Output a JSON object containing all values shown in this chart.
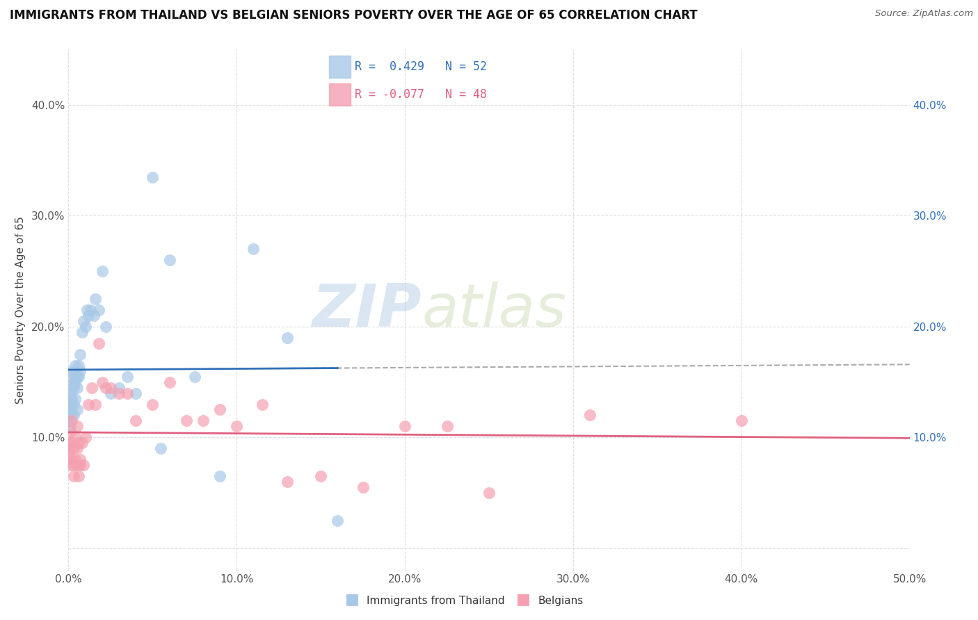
{
  "title": "IMMIGRANTS FROM THAILAND VS BELGIAN SENIORS POVERTY OVER THE AGE OF 65 CORRELATION CHART",
  "source": "Source: ZipAtlas.com",
  "ylabel": "Seniors Poverty Over the Age of 65",
  "xlim": [
    0.0,
    0.5
  ],
  "ylim": [
    -0.02,
    0.45
  ],
  "yticks": [
    0.0,
    0.1,
    0.2,
    0.3,
    0.4
  ],
  "xticks": [
    0.0,
    0.1,
    0.2,
    0.3,
    0.4,
    0.5
  ],
  "blue_R": 0.429,
  "blue_N": 52,
  "pink_R": -0.077,
  "pink_N": 48,
  "blue_color": "#a8c8e8",
  "pink_color": "#f4a0b0",
  "blue_line_color": "#3070b8",
  "pink_line_color": "#e06080",
  "dash_line_color": "#aaaaaa",
  "blue_scatter_x": [
    0.0,
    0.0,
    0.0,
    0.0,
    0.001,
    0.001,
    0.001,
    0.001,
    0.001,
    0.002,
    0.002,
    0.002,
    0.002,
    0.002,
    0.003,
    0.003,
    0.003,
    0.003,
    0.004,
    0.004,
    0.004,
    0.004,
    0.005,
    0.005,
    0.005,
    0.006,
    0.006,
    0.007,
    0.007,
    0.008,
    0.009,
    0.01,
    0.011,
    0.012,
    0.013,
    0.015,
    0.016,
    0.018,
    0.02,
    0.022,
    0.025,
    0.03,
    0.035,
    0.04,
    0.05,
    0.055,
    0.06,
    0.075,
    0.09,
    0.11,
    0.13,
    0.16
  ],
  "blue_scatter_y": [
    0.125,
    0.13,
    0.12,
    0.115,
    0.14,
    0.155,
    0.135,
    0.125,
    0.11,
    0.145,
    0.135,
    0.16,
    0.12,
    0.13,
    0.145,
    0.15,
    0.13,
    0.12,
    0.155,
    0.135,
    0.15,
    0.165,
    0.145,
    0.155,
    0.125,
    0.165,
    0.155,
    0.16,
    0.175,
    0.195,
    0.205,
    0.2,
    0.215,
    0.21,
    0.215,
    0.21,
    0.225,
    0.215,
    0.25,
    0.2,
    0.14,
    0.145,
    0.155,
    0.14,
    0.335,
    0.09,
    0.26,
    0.155,
    0.065,
    0.27,
    0.19,
    0.025
  ],
  "pink_scatter_x": [
    0.0,
    0.0,
    0.001,
    0.001,
    0.001,
    0.002,
    0.002,
    0.002,
    0.003,
    0.003,
    0.003,
    0.004,
    0.004,
    0.005,
    0.005,
    0.005,
    0.006,
    0.006,
    0.007,
    0.007,
    0.008,
    0.009,
    0.01,
    0.012,
    0.014,
    0.016,
    0.018,
    0.02,
    0.022,
    0.025,
    0.03,
    0.035,
    0.04,
    0.05,
    0.06,
    0.07,
    0.08,
    0.09,
    0.1,
    0.115,
    0.13,
    0.15,
    0.175,
    0.2,
    0.225,
    0.25,
    0.31,
    0.4
  ],
  "pink_scatter_y": [
    0.095,
    0.085,
    0.105,
    0.075,
    0.09,
    0.08,
    0.095,
    0.115,
    0.065,
    0.075,
    0.09,
    0.08,
    0.1,
    0.075,
    0.09,
    0.11,
    0.065,
    0.095,
    0.08,
    0.075,
    0.095,
    0.075,
    0.1,
    0.13,
    0.145,
    0.13,
    0.185,
    0.15,
    0.145,
    0.145,
    0.14,
    0.14,
    0.115,
    0.13,
    0.15,
    0.115,
    0.115,
    0.125,
    0.11,
    0.13,
    0.06,
    0.065,
    0.055,
    0.11,
    0.11,
    0.05,
    0.12,
    0.115
  ],
  "watermark_zip": "ZIP",
  "watermark_atlas": "atlas",
  "background_color": "#ffffff",
  "grid_color": "#dddddd",
  "title_fontsize": 12,
  "axis_label_fontsize": 11,
  "tick_fontsize": 11
}
